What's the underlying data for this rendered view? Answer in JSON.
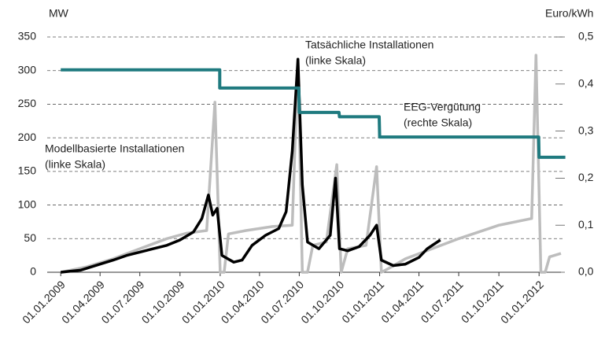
{
  "chart_data": {
    "type": "line",
    "y_unit": "MW",
    "y2_unit": "Euro/kWh",
    "xlim": [
      "2008-12-01",
      "2012-02-20"
    ],
    "xticks": [
      {
        "value": "2009-01-01",
        "label": "01.01.2009"
      },
      {
        "value": "2009-04-01",
        "label": "01.04.2009"
      },
      {
        "value": "2009-07-01",
        "label": "01.07.2009"
      },
      {
        "value": "2009-10-01",
        "label": "01.10.2009"
      },
      {
        "value": "2010-01-01",
        "label": "01.01.2010"
      },
      {
        "value": "2010-04-01",
        "label": "01.04.2010"
      },
      {
        "value": "2010-07-01",
        "label": "01.07.2010"
      },
      {
        "value": "2010-10-01",
        "label": "01.10.2010"
      },
      {
        "value": "2011-01-01",
        "label": "01.01.2011"
      },
      {
        "value": "2011-04-01",
        "label": "01.04.2011"
      },
      {
        "value": "2011-07-01",
        "label": "01.07.2011"
      },
      {
        "value": "2011-10-01",
        "label": "01.10.2011"
      },
      {
        "value": "2012-01-01",
        "label": "01.01.2012"
      }
    ],
    "ylim": [
      0,
      350
    ],
    "yticks": [
      0,
      50,
      100,
      150,
      200,
      250,
      300,
      350
    ],
    "y2lim": [
      0,
      0.5
    ],
    "y2ticks": [
      {
        "value": 0,
        "label": "0,0"
      },
      {
        "value": 0.1,
        "label": "0,1"
      },
      {
        "value": 0.2,
        "label": "0,2"
      },
      {
        "value": 0.3,
        "label": "0,3"
      },
      {
        "value": 0.4,
        "label": "0,4"
      },
      {
        "value": 0.5,
        "label": "0,5"
      }
    ],
    "grid": true,
    "series": [
      {
        "name": "Modellbasierte Installationen",
        "note": "(linke Skala)",
        "color": "#bdbdbd",
        "x": [
          "2009-01-01",
          "2009-03-01",
          "2009-05-01",
          "2009-07-01",
          "2009-09-01",
          "2009-10-15",
          "2009-12-01",
          "2009-12-20",
          "2010-01-01",
          "2010-01-10",
          "2010-01-20",
          "2010-03-01",
          "2010-05-01",
          "2010-06-15",
          "2010-06-28",
          "2010-07-08",
          "2010-07-20",
          "2010-08-01",
          "2010-09-01",
          "2010-09-25",
          "2010-10-05",
          "2010-10-20",
          "2010-12-01",
          "2010-12-25",
          "2011-01-05",
          "2011-01-20",
          "2011-03-01",
          "2011-05-01",
          "2011-07-01",
          "2011-10-01",
          "2011-12-15",
          "2011-12-25",
          "2012-01-05",
          "2012-01-15",
          "2012-01-25",
          "2012-02-20"
        ],
        "values": [
          0,
          8,
          20,
          35,
          50,
          58,
          62,
          253,
          0,
          0,
          57,
          62,
          68,
          70,
          317,
          0,
          0,
          40,
          45,
          160,
          0,
          35,
          40,
          157,
          0,
          5,
          20,
          35,
          50,
          70,
          80,
          323,
          0,
          0,
          23,
          28
        ]
      },
      {
        "name": "Tatsächliche Installationen",
        "note": "(linke Skala)",
        "color": "#000000",
        "x": [
          "2009-01-01",
          "2009-02-15",
          "2009-04-01",
          "2009-05-01",
          "2009-06-01",
          "2009-07-01",
          "2009-08-01",
          "2009-09-01",
          "2009-10-01",
          "2009-11-01",
          "2009-11-20",
          "2009-12-05",
          "2009-12-15",
          "2009-12-25",
          "2010-01-05",
          "2010-02-01",
          "2010-02-20",
          "2010-03-15",
          "2010-04-15",
          "2010-05-15",
          "2010-06-01",
          "2010-06-15",
          "2010-06-28",
          "2010-07-08",
          "2010-07-20",
          "2010-08-15",
          "2010-09-10",
          "2010-09-22",
          "2010-10-01",
          "2010-10-20",
          "2010-11-15",
          "2010-12-10",
          "2010-12-25",
          "2011-01-05",
          "2011-02-01",
          "2011-03-01",
          "2011-04-01",
          "2011-04-20",
          "2011-05-20"
        ],
        "values": [
          0,
          3,
          12,
          18,
          25,
          30,
          35,
          40,
          48,
          60,
          80,
          115,
          85,
          95,
          25,
          15,
          18,
          40,
          55,
          65,
          90,
          180,
          317,
          130,
          45,
          35,
          55,
          140,
          35,
          32,
          38,
          55,
          70,
          18,
          10,
          12,
          22,
          35,
          48
        ]
      },
      {
        "name": "EEG-Vergütung",
        "note": "(rechte Skala)",
        "color": "#1f7a7f",
        "axis": "y2",
        "x": [
          "2009-01-01",
          "2009-12-31",
          "2009-12-31",
          "2010-06-30",
          "2010-07-01",
          "2010-09-30",
          "2010-10-01",
          "2010-12-31",
          "2011-01-01",
          "2011-12-31",
          "2012-01-01",
          "2012-03-01"
        ],
        "values": [
          0.4301,
          0.4301,
          0.3914,
          0.3914,
          0.3396,
          0.3396,
          0.3305,
          0.3305,
          0.2874,
          0.2874,
          0.2443,
          0.2443
        ]
      }
    ]
  }
}
